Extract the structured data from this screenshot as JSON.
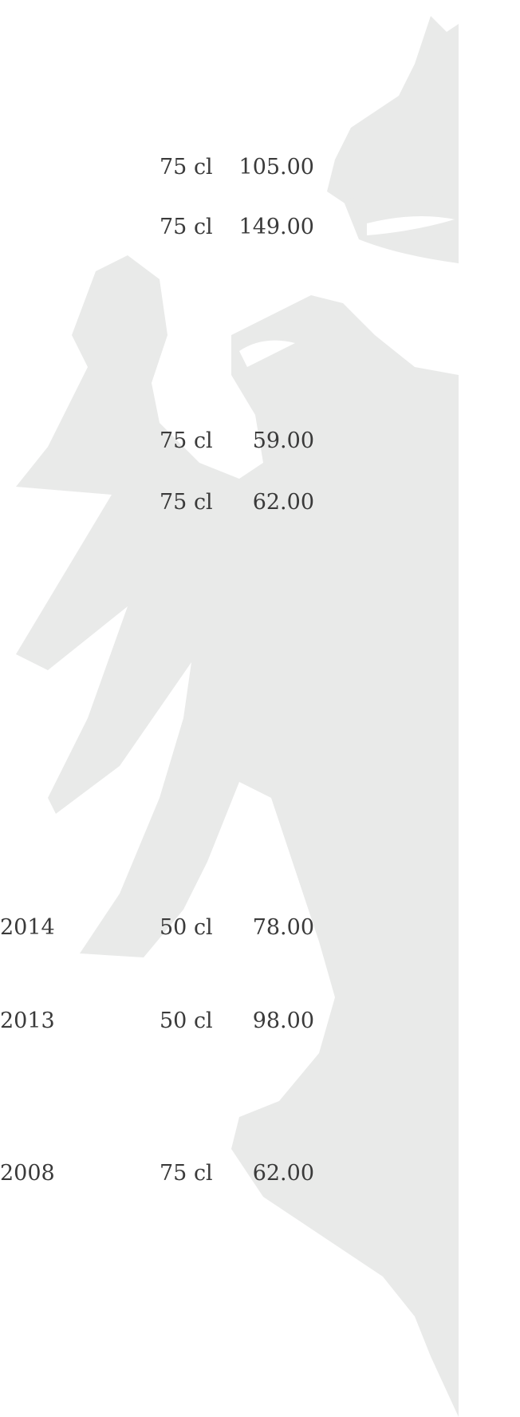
{
  "rows": [
    {
      "volume": "75 cl",
      "price": "105.00"
    },
    {
      "volume": "75 cl",
      "price": "149.00"
    },
    {
      "volume": "75 cl",
      "price": "59.00"
    },
    {
      "volume": "75 cl",
      "price": "62.00"
    },
    {
      "year": "2014",
      "volume": "50 cl",
      "price": "78.00"
    },
    {
      "year": "2013",
      "volume": "50 cl",
      "price": "98.00"
    },
    {
      "year": "2008",
      "volume": "75 cl",
      "price": "62.00"
    }
  ]
}
